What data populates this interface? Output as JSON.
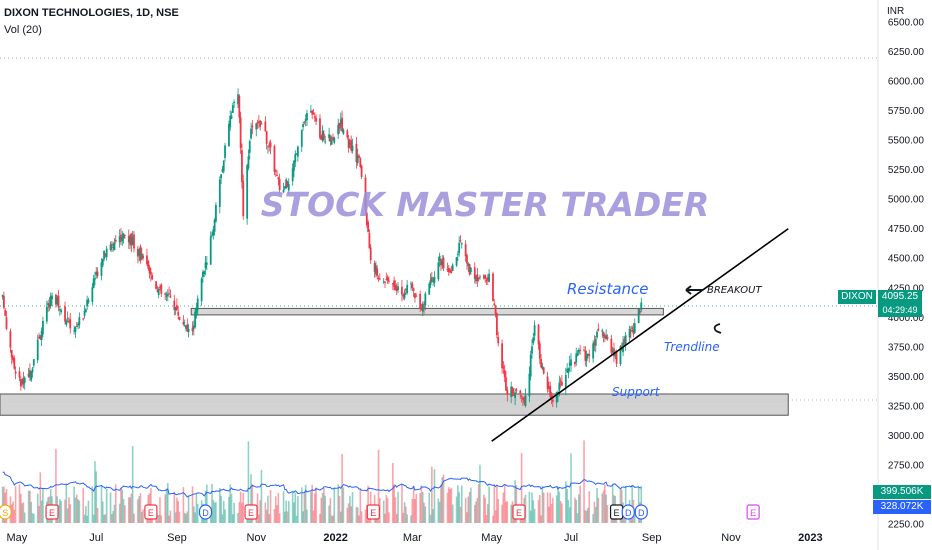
{
  "header": {
    "title": "DIXON TECHNOLOGIES, 1D, NSE",
    "volume_indicator": "Vol (20)",
    "currency": "INR"
  },
  "watermark": "STOCK MASTER TRADER",
  "annotations": {
    "resistance": "Resistance",
    "support": "Support",
    "trendline": "Trendline",
    "breakout": "BREAKOUT"
  },
  "price_tag": {
    "symbol": "DIXON",
    "price": "4095.25",
    "countdown": "04:29:49"
  },
  "volume_tags": {
    "volume": "399.506K",
    "volume_ma": "328.072K"
  },
  "colors": {
    "up": "#089981",
    "down": "#f23645",
    "ma": "#2962ff",
    "annotation": "#2962ff",
    "watermark": "#9c8fd9",
    "zone": "#c8c8c8"
  },
  "chart_data": {
    "type": "candlestick",
    "price_axis": {
      "ticks": [
        "6500.00",
        "6250.00",
        "6000.00",
        "5750.00",
        "5500.00",
        "5250.00",
        "5000.00",
        "4750.00",
        "4500.00",
        "4250.00",
        "4000.00",
        "3750.00",
        "3500.00",
        "3250.00",
        "3000.00",
        "2750.00",
        "2500.00",
        "2250.00"
      ],
      "range": [
        2130,
        6620
      ]
    },
    "time_axis": {
      "labels": [
        "May",
        "Jul",
        "Sep",
        "Nov",
        "2022",
        "Mar",
        "May",
        "Jul",
        "Sep",
        "Nov",
        "2023"
      ],
      "label_dates": [
        "2021-05-01",
        "2021-07-01",
        "2021-09-01",
        "2021-11-01",
        "2022-01-01",
        "2022-03-01",
        "2022-05-01",
        "2022-07-01",
        "2022-09-01",
        "2022-11-01",
        "2023-01-01"
      ]
    },
    "zones": [
      {
        "name": "Resistance",
        "from": 4020,
        "to": 4075
      },
      {
        "name": "Support",
        "from": 3170,
        "to": 3350
      }
    ],
    "trendline": {
      "from": [
        "2022-05-01",
        2950
      ],
      "to": [
        "2022-12-15",
        4750
      ]
    },
    "last_price": 4095.25,
    "price_path": [
      [
        "2021-04-20",
        4150
      ],
      [
        "2021-04-28",
        3600
      ],
      [
        "2021-05-05",
        3420
      ],
      [
        "2021-05-12",
        3550
      ],
      [
        "2021-05-20",
        3900
      ],
      [
        "2021-05-28",
        4200
      ],
      [
        "2021-06-05",
        4050
      ],
      [
        "2021-06-12",
        3900
      ],
      [
        "2021-06-20",
        4000
      ],
      [
        "2021-06-28",
        4250
      ],
      [
        "2021-07-05",
        4500
      ],
      [
        "2021-07-12",
        4600
      ],
      [
        "2021-07-20",
        4700
      ],
      [
        "2021-07-28",
        4650
      ],
      [
        "2021-08-05",
        4500
      ],
      [
        "2021-08-12",
        4350
      ],
      [
        "2021-08-20",
        4200
      ],
      [
        "2021-08-28",
        4150
      ],
      [
        "2021-09-05",
        3950
      ],
      [
        "2021-09-12",
        3850
      ],
      [
        "2021-09-20",
        4300
      ],
      [
        "2021-09-28",
        4700
      ],
      [
        "2021-10-05",
        5200
      ],
      [
        "2021-10-12",
        5700
      ],
      [
        "2021-10-18",
        5900
      ],
      [
        "2021-10-22",
        4900
      ],
      [
        "2021-10-28",
        5600
      ],
      [
        "2021-11-05",
        5650
      ],
      [
        "2021-11-12",
        5400
      ],
      [
        "2021-11-20",
        5050
      ],
      [
        "2021-11-28",
        5200
      ],
      [
        "2021-12-05",
        5600
      ],
      [
        "2021-12-12",
        5750
      ],
      [
        "2021-12-20",
        5550
      ],
      [
        "2021-12-28",
        5500
      ],
      [
        "2022-01-05",
        5650
      ],
      [
        "2022-01-12",
        5450
      ],
      [
        "2022-01-20",
        5300
      ],
      [
        "2022-01-28",
        4500
      ],
      [
        "2022-02-05",
        4300
      ],
      [
        "2022-02-12",
        4350
      ],
      [
        "2022-02-20",
        4200
      ],
      [
        "2022-02-28",
        4250
      ],
      [
        "2022-03-08",
        4050
      ],
      [
        "2022-03-15",
        4300
      ],
      [
        "2022-03-22",
        4500
      ],
      [
        "2022-03-30",
        4350
      ],
      [
        "2022-04-07",
        4650
      ],
      [
        "2022-04-14",
        4400
      ],
      [
        "2022-04-22",
        4300
      ],
      [
        "2022-04-30",
        4350
      ],
      [
        "2022-05-06",
        3800
      ],
      [
        "2022-05-13",
        3350
      ],
      [
        "2022-05-20",
        3400
      ],
      [
        "2022-05-27",
        3300
      ],
      [
        "2022-06-03",
        3900
      ],
      [
        "2022-06-10",
        3500
      ],
      [
        "2022-06-17",
        3300
      ],
      [
        "2022-06-24",
        3450
      ],
      [
        "2022-07-01",
        3600
      ],
      [
        "2022-07-08",
        3700
      ],
      [
        "2022-07-15",
        3650
      ],
      [
        "2022-07-22",
        3900
      ],
      [
        "2022-07-29",
        3800
      ],
      [
        "2022-08-05",
        3650
      ],
      [
        "2022-08-12",
        3850
      ],
      [
        "2022-08-18",
        3900
      ],
      [
        "2022-08-24",
        4095
      ]
    ],
    "volume_axis": {
      "range": [
        0,
        3500000
      ]
    },
    "series": [
      {
        "name": "Vol (20)",
        "last": "328.072K"
      }
    ],
    "volume_last": "399.506K",
    "events": [
      {
        "label": "S",
        "date": "2021-04-22"
      },
      {
        "label": "E",
        "date": "2021-05-28"
      },
      {
        "label": "E",
        "date": "2021-08-12"
      },
      {
        "label": "D",
        "date": "2021-09-23"
      },
      {
        "label": "E",
        "date": "2021-10-28"
      },
      {
        "label": "E",
        "date": "2022-01-30"
      },
      {
        "label": "E",
        "date": "2022-05-22"
      },
      {
        "label": "E",
        "date": "2022-08-05"
      },
      {
        "label": "D",
        "date": "2022-08-14"
      },
      {
        "label": "D",
        "date": "2022-08-24"
      },
      {
        "label": "E",
        "date": "2022-11-18"
      }
    ]
  }
}
